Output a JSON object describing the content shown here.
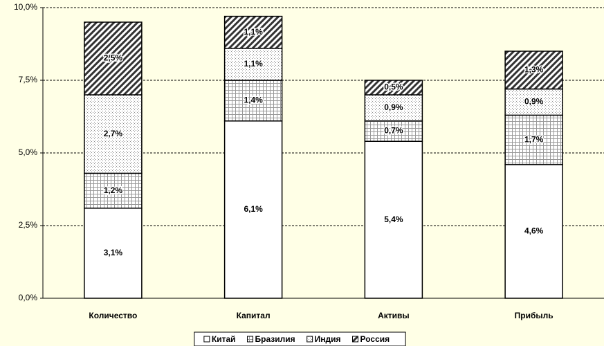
{
  "chart_data": {
    "type": "stacked_bar",
    "categories": [
      "Количество",
      "Капитал",
      "Активы",
      "Прибыль"
    ],
    "series": [
      {
        "name": "Китай",
        "color": "#ffffff",
        "pattern": "solid",
        "values": [
          3.1,
          6.1,
          5.4,
          4.6
        ],
        "value_labels": [
          "3,1%",
          "6,1%",
          "5,4%",
          "4,6%"
        ]
      },
      {
        "name": "Бразилия",
        "color": "#ffffff",
        "pattern": "grid",
        "values": [
          1.2,
          1.4,
          0.7,
          1.7
        ],
        "value_labels": [
          "1,2%",
          "1,4%",
          "0,7%",
          "1,7%"
        ]
      },
      {
        "name": "Индия",
        "color": "#ffffff",
        "pattern": "dots",
        "values": [
          2.7,
          1.1,
          0.9,
          0.9
        ],
        "value_labels": [
          "2,7%",
          "1,1%",
          "0,9%",
          "0,9%"
        ]
      },
      {
        "name": "Россия",
        "color": "#ffffff",
        "pattern": "stripes",
        "values": [
          2.5,
          1.1,
          0.5,
          1.3
        ],
        "value_labels": [
          "2,5%",
          "1,1%",
          "0,5%",
          "1,3%"
        ]
      }
    ],
    "ylim": [
      0,
      10
    ],
    "yticks": [
      {
        "value": 0,
        "label": "0,0%"
      },
      {
        "value": 2.5,
        "label": "2,5%"
      },
      {
        "value": 5,
        "label": "5,0%"
      },
      {
        "value": 7.5,
        "label": "7,5%"
      },
      {
        "value": 10,
        "label": "10,0%"
      }
    ],
    "grid": true,
    "legend": "bottom"
  }
}
